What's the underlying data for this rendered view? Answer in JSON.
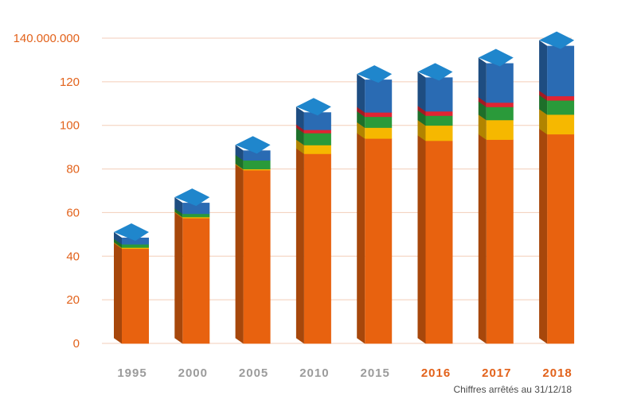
{
  "chart_data": {
    "type": "bar",
    "stacked": true,
    "title": "",
    "xlabel": "",
    "ylabel": "",
    "ylim": [
      0,
      140
    ],
    "y_ticks": [
      "0",
      "20",
      "40",
      "60",
      "80",
      "100",
      "120",
      "140.000.000"
    ],
    "y_tick_values": [
      0,
      20,
      40,
      60,
      80,
      100,
      120,
      140
    ],
    "categories": [
      "1995",
      "2000",
      "2005",
      "2010",
      "2015",
      "2016",
      "2017",
      "2018"
    ],
    "highlighted_categories": [
      "2016",
      "2017",
      "2018"
    ],
    "series": [
      {
        "name": "orange",
        "color": "#e8620f",
        "values": [
          43.5,
          57.5,
          79.5,
          87,
          94,
          93,
          93.5,
          96
        ]
      },
      {
        "name": "yellow",
        "color": "#f6b800",
        "values": [
          0.5,
          0.5,
          0.5,
          4,
          5,
          7,
          9,
          9
        ]
      },
      {
        "name": "green",
        "color": "#2a9a3a",
        "values": [
          1.5,
          1.5,
          4,
          5.5,
          5,
          4.5,
          6,
          6.5
        ]
      },
      {
        "name": "red",
        "color": "#e02432",
        "values": [
          0,
          0,
          0,
          1.5,
          2,
          2,
          2,
          2
        ]
      },
      {
        "name": "blue",
        "color": "#2a6bb3",
        "values": [
          3,
          5,
          4.5,
          8,
          15,
          15.5,
          18,
          23
        ]
      }
    ],
    "footnote": "Chiffres arrêtés au 31/12/18"
  },
  "colors": {
    "axis_text": "#e2621b",
    "gridline": "#f3cdb8",
    "category_normal": "#9b9b9b",
    "category_highlight": "#e2621b"
  }
}
